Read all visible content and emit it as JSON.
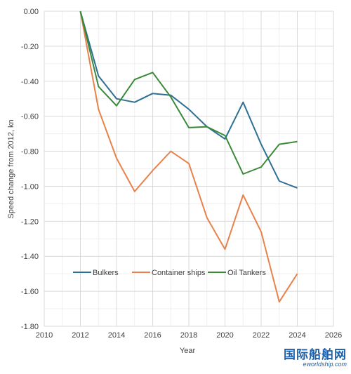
{
  "chart_data": {
    "type": "line",
    "xlabel": "Year",
    "ylabel": "Speed change from 2012, kn",
    "xlim": [
      2010,
      2026
    ],
    "ylim": [
      -1.8,
      0.0
    ],
    "x_ticks": [
      2010,
      2012,
      2014,
      2016,
      2018,
      2020,
      2022,
      2024,
      2026
    ],
    "y_ticks": [
      0.0,
      -0.2,
      -0.4,
      -0.6,
      -0.8,
      -1.0,
      -1.2,
      -1.4,
      -1.6,
      -1.8
    ],
    "x_tick_labels": [
      "2010",
      "2012",
      "2014",
      "2016",
      "2018",
      "2020",
      "2022",
      "2024",
      "2026"
    ],
    "y_tick_labels": [
      "0.00",
      "-0.20",
      "-0.40",
      "-0.60",
      "-0.80",
      "-1.00",
      "-1.20",
      "-1.40",
      "-1.60",
      "-1.80"
    ],
    "grid": true,
    "minor_grid": true,
    "legend_position": "inside-bottom-center",
    "series": [
      {
        "name": "Bulkers",
        "color": "#2e6f94",
        "x": [
          2012,
          2013,
          2014,
          2015,
          2016,
          2017,
          2018,
          2019,
          2020,
          2021,
          2022,
          2023,
          2024
        ],
        "y": [
          0.0,
          -0.37,
          -0.5,
          -0.52,
          -0.47,
          -0.48,
          -0.56,
          -0.66,
          -0.73,
          -0.52,
          -0.76,
          -0.97,
          -1.01
        ]
      },
      {
        "name": "Container ships",
        "color": "#e8824a",
        "x": [
          2012,
          2013,
          2014,
          2015,
          2016,
          2017,
          2018,
          2019,
          2020,
          2021,
          2022,
          2023,
          2024
        ],
        "y": [
          0.0,
          -0.56,
          -0.84,
          -1.03,
          -0.91,
          -0.8,
          -0.87,
          -1.18,
          -1.36,
          -1.05,
          -1.26,
          -1.66,
          -1.5
        ]
      },
      {
        "name": "Oil Tankers",
        "color": "#3a8a3a",
        "x": [
          2012,
          2013,
          2014,
          2015,
          2016,
          2017,
          2018,
          2019,
          2020,
          2021,
          2022,
          2023,
          2024
        ],
        "y": [
          0.0,
          -0.43,
          -0.54,
          -0.39,
          -0.35,
          -0.49,
          -0.665,
          -0.66,
          -0.71,
          -0.93,
          -0.89,
          -0.76,
          -0.745
        ]
      }
    ]
  },
  "watermark": {
    "cn": "国际船舶网",
    "en": "eworldship.com"
  }
}
